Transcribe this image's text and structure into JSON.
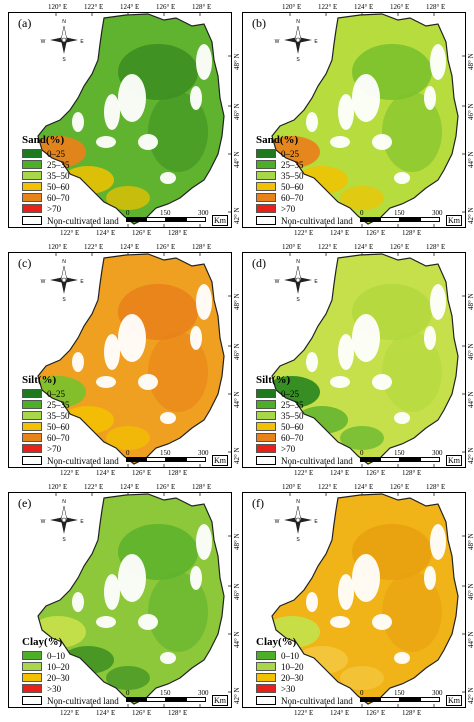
{
  "lon_ticks_top": [
    "120° E",
    "122° E",
    "124° E",
    "126° E",
    "128° E"
  ],
  "lon_ticks_bottom": [
    "122° E",
    "124° E",
    "126° E",
    "128° E"
  ],
  "lat_ticks": [
    "48° N",
    "46° N",
    "44° N",
    "42° N"
  ],
  "scale": {
    "zero": "0",
    "mid": "150",
    "end": "300",
    "unit": "Km"
  },
  "non_cultivated": "Non-cultivated land",
  "compass": {
    "n": "N",
    "s": "S",
    "e": "E",
    "w": "W"
  },
  "legends": {
    "sand": {
      "title": "Sand(%)",
      "classes": [
        {
          "label": "0–25",
          "color": "#1f7a1f"
        },
        {
          "label": "25–35",
          "color": "#4caf27"
        },
        {
          "label": "35–50",
          "color": "#a8d84a"
        },
        {
          "label": "50–60",
          "color": "#f2c200"
        },
        {
          "label": "60–70",
          "color": "#e8821a"
        },
        {
          "label": ">70",
          "color": "#e8201a"
        }
      ]
    },
    "silt": {
      "title": "Silt(%)",
      "classes": [
        {
          "label": "0–25",
          "color": "#1f7a1f"
        },
        {
          "label": "25–35",
          "color": "#4caf27"
        },
        {
          "label": "35–50",
          "color": "#a8d84a"
        },
        {
          "label": "50–60",
          "color": "#f2c200"
        },
        {
          "label": "60–70",
          "color": "#e8821a"
        },
        {
          "label": ">70",
          "color": "#e8201a"
        }
      ]
    },
    "clay": {
      "title": "Clay(%)",
      "classes": [
        {
          "label": "0–10",
          "color": "#4caf27"
        },
        {
          "label": "10–20",
          "color": "#a8d84a"
        },
        {
          "label": "20–30",
          "color": "#f2c200"
        },
        {
          "label": ">30",
          "color": "#e8201a"
        }
      ]
    }
  },
  "panels": [
    {
      "label": "(a)",
      "legend": "sand",
      "main": "#5fb32e",
      "accent": "#3d8f22",
      "edge": "#e8821a",
      "edge2": "#f2c200"
    },
    {
      "label": "(b)",
      "legend": "sand",
      "main": "#b6dc3e",
      "accent": "#7cc12c",
      "edge": "#e8821a",
      "edge2": "#f2c200"
    },
    {
      "label": "(c)",
      "legend": "silt",
      "main": "#f0a020",
      "accent": "#e8821a",
      "edge": "#7cc12c",
      "edge2": "#f2c200"
    },
    {
      "label": "(d)",
      "legend": "silt",
      "main": "#c5e04a",
      "accent": "#b3d83e",
      "edge": "#2f8a22",
      "edge2": "#5fb32e"
    },
    {
      "label": "(e)",
      "legend": "clay",
      "main": "#8cc83a",
      "accent": "#5fb32e",
      "edge": "#c5e04a",
      "edge2": "#3d8f22"
    },
    {
      "label": "(f)",
      "legend": "clay",
      "main": "#f0b418",
      "accent": "#e8a010",
      "edge": "#c5e04a",
      "edge2": "#f5c842"
    }
  ]
}
